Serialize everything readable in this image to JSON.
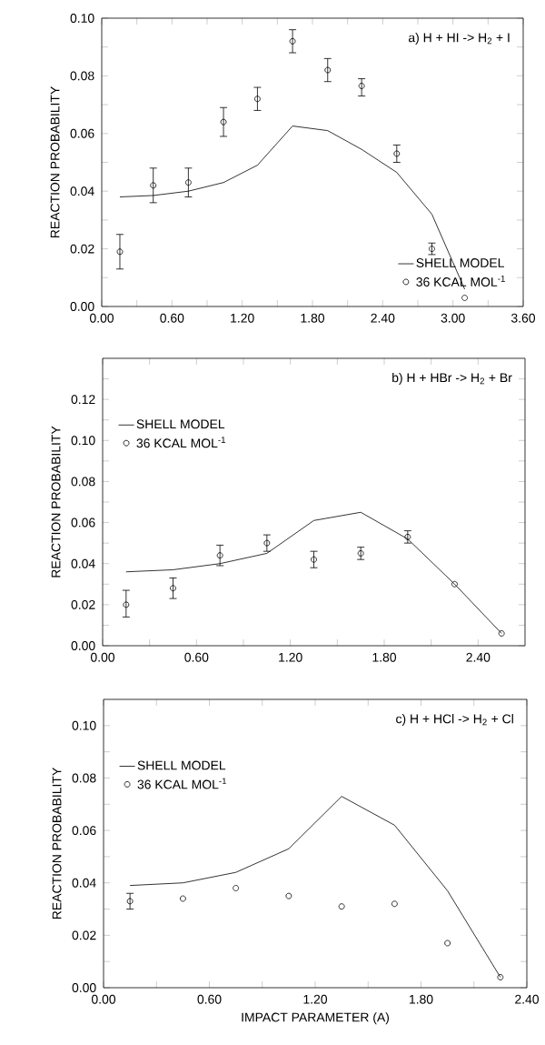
{
  "chart_data": [
    {
      "type": "scatter",
      "annotations": [
        "a) H + HI -> H$_{2}$ + I"
      ],
      "ylabel": "REACTION PROBABILITY",
      "legend": "bottom right",
      "x": [
        0.155,
        0.44,
        0.74,
        1.04,
        1.33,
        1.63,
        1.93,
        2.22,
        2.52,
        2.82,
        3.1
      ],
      "series": [
        {
          "name": "SHELL MODEL",
          "type": "line",
          "line_style": "solid",
          "color": "#000000",
          "values": [
            0.038,
            0.0385,
            0.04,
            0.043,
            0.049,
            0.0626,
            0.061,
            0.0545,
            0.0465,
            0.032,
            0.006
          ]
        },
        {
          "name": "36 KCAL MOL$^{-1}$",
          "marker": "circle",
          "color": "#000000",
          "values": [
            0.019,
            0.042,
            0.043,
            0.064,
            0.072,
            0.092,
            0.082,
            0.0765,
            0.053,
            0.02,
            0.003
          ],
          "errors": [
            [
              0.013,
              0.025
            ],
            [
              0.036,
              0.048
            ],
            [
              0.038,
              0.048
            ],
            [
              0.059,
              0.069
            ],
            [
              0.068,
              0.076
            ],
            [
              0.088,
              0.096
            ],
            [
              0.078,
              0.086
            ],
            [
              0.073,
              0.079
            ],
            [
              0.05,
              0.056
            ],
            [
              0.018,
              0.022
            ],
            null
          ]
        }
      ],
      "xlim": [
        0,
        3.6
      ],
      "ylim": [
        0,
        0.1
      ],
      "xticks": [
        {
          "value": 0,
          "label": "0.00"
        },
        {
          "value": 0.3,
          "label": null
        },
        {
          "value": 0.6,
          "label": "0.60"
        },
        {
          "value": 0.9,
          "label": null
        },
        {
          "value": 1.2,
          "label": "1.20"
        },
        {
          "value": 1.5,
          "label": null
        },
        {
          "value": 1.8,
          "label": "1.80"
        },
        {
          "value": 2.1,
          "label": null
        },
        {
          "value": 2.4,
          "label": "2.40"
        },
        {
          "value": 2.7,
          "label": null
        },
        {
          "value": 3.0,
          "label": "3.00"
        },
        {
          "value": 3.3,
          "label": null
        },
        {
          "value": 3.6,
          "label": "3.60"
        }
      ],
      "yticks": [
        {
          "value": 0,
          "label": "0.00"
        },
        {
          "value": 0.01,
          "label": null
        },
        {
          "value": 0.02,
          "label": "0.02"
        },
        {
          "value": 0.03,
          "label": null
        },
        {
          "value": 0.04,
          "label": "0.04"
        },
        {
          "value": 0.05,
          "label": null
        },
        {
          "value": 0.06,
          "label": "0.06"
        },
        {
          "value": 0.07,
          "label": null
        },
        {
          "value": 0.08,
          "label": "0.08"
        },
        {
          "value": 0.09,
          "label": null
        },
        {
          "value": 0.1,
          "label": "0.10"
        }
      ]
    },
    {
      "type": "scatter",
      "annotations": [
        "b) H + HBr -> H$_{2}$ + Br"
      ],
      "ylabel": "REACTION PROBABILITY",
      "legend": "top left",
      "x": [
        0.15,
        0.45,
        0.75,
        1.05,
        1.35,
        1.65,
        1.95,
        2.25,
        2.55
      ],
      "series": [
        {
          "name": "SHELL MODEL",
          "type": "line",
          "line_style": "solid",
          "color": "#000000",
          "values": [
            0.036,
            0.037,
            0.04,
            0.045,
            0.061,
            0.065,
            0.052,
            0.03,
            0.006
          ]
        },
        {
          "name": "36 KCAL MOL$^{-1}$",
          "marker": "circle",
          "color": "#000000",
          "values": [
            0.02,
            0.028,
            0.044,
            0.05,
            0.042,
            0.045,
            0.053,
            0.03,
            0.006
          ],
          "errors": [
            [
              0.014,
              0.027
            ],
            [
              0.023,
              0.033
            ],
            [
              0.039,
              0.049
            ],
            [
              0.046,
              0.054
            ],
            [
              0.038,
              0.046
            ],
            [
              0.042,
              0.048
            ],
            [
              0.05,
              0.056
            ],
            null,
            null
          ]
        }
      ],
      "xlim": [
        0,
        2.7
      ],
      "ylim": [
        0,
        0.14
      ],
      "xticks": [
        {
          "value": 0,
          "label": "0.00"
        },
        {
          "value": 0.3,
          "label": null
        },
        {
          "value": 0.6,
          "label": "0.60"
        },
        {
          "value": 0.9,
          "label": null
        },
        {
          "value": 1.2,
          "label": "1.20"
        },
        {
          "value": 1.5,
          "label": null
        },
        {
          "value": 1.8,
          "label": "1.80"
        },
        {
          "value": 2.1,
          "label": null
        },
        {
          "value": 2.4,
          "label": "2.40"
        }
      ],
      "yticks": [
        {
          "value": 0,
          "label": "0.00"
        },
        {
          "value": 0.01,
          "label": null
        },
        {
          "value": 0.02,
          "label": "0.02"
        },
        {
          "value": 0.03,
          "label": null
        },
        {
          "value": 0.04,
          "label": "0.04"
        },
        {
          "value": 0.05,
          "label": null
        },
        {
          "value": 0.06,
          "label": "0.06"
        },
        {
          "value": 0.07,
          "label": null
        },
        {
          "value": 0.08,
          "label": "0.08"
        },
        {
          "value": 0.09,
          "label": null
        },
        {
          "value": 0.1,
          "label": "0.10"
        },
        {
          "value": 0.11,
          "label": null
        },
        {
          "value": 0.12,
          "label": "0.12"
        },
        {
          "value": 0.13,
          "label": null
        }
      ]
    },
    {
      "type": "scatter",
      "annotations": [
        "c) H + HCl -> H$_{2}$ + Cl"
      ],
      "xlabel": "IMPACT PARAMETER (A)",
      "ylabel": "REACTION PROBABILITY",
      "legend": "top left",
      "x": [
        0.15,
        0.45,
        0.75,
        1.05,
        1.35,
        1.65,
        1.95,
        2.25
      ],
      "series": [
        {
          "name": "SHELL MODEL",
          "type": "line",
          "line_style": "solid",
          "color": "#000000",
          "values": [
            0.039,
            0.04,
            0.044,
            0.053,
            0.073,
            0.062,
            0.037,
            0.004
          ]
        },
        {
          "name": "36 KCAL MOL$^{-1}$",
          "marker": "circle",
          "color": "#000000",
          "values": [
            0.033,
            0.034,
            0.038,
            0.035,
            0.031,
            0.032,
            0.017,
            0.004
          ],
          "errors": [
            [
              0.03,
              0.036
            ],
            null,
            null,
            null,
            null,
            null,
            null,
            null
          ]
        }
      ],
      "xlim": [
        0,
        2.4
      ],
      "ylim": [
        0,
        0.11
      ],
      "xticks": [
        {
          "value": 0,
          "label": "0.00"
        },
        {
          "value": 0.3,
          "label": null
        },
        {
          "value": 0.6,
          "label": "0.60"
        },
        {
          "value": 0.9,
          "label": null
        },
        {
          "value": 1.2,
          "label": "1.20"
        },
        {
          "value": 1.5,
          "label": null
        },
        {
          "value": 1.8,
          "label": "1.80"
        },
        {
          "value": 2.1,
          "label": null
        },
        {
          "value": 2.4,
          "label": "2.40"
        }
      ],
      "yticks": [
        {
          "value": 0,
          "label": "0.00"
        },
        {
          "value": 0.01,
          "label": null
        },
        {
          "value": 0.02,
          "label": "0.02"
        },
        {
          "value": 0.03,
          "label": null
        },
        {
          "value": 0.04,
          "label": "0.04"
        },
        {
          "value": 0.05,
          "label": null
        },
        {
          "value": 0.06,
          "label": "0.06"
        },
        {
          "value": 0.07,
          "label": null
        },
        {
          "value": 0.08,
          "label": "0.08"
        },
        {
          "value": 0.09,
          "label": null
        },
        {
          "value": 0.1,
          "label": "0.10"
        }
      ]
    }
  ]
}
